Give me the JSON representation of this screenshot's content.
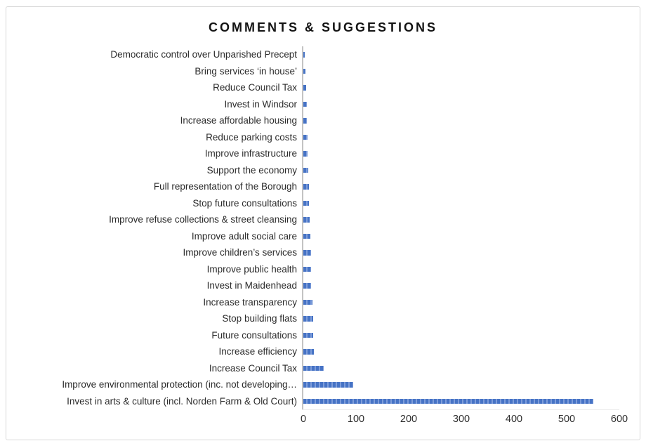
{
  "title": "COMMENTS & SUGGESTIONS",
  "chart_data": {
    "type": "bar",
    "orientation": "horizontal",
    "title": "COMMENTS & SUGGESTIONS",
    "categories": [
      "Democratic control over Unparished Precept",
      "Bring services ‘in house’",
      "Reduce Council Tax",
      "Invest in Windsor",
      "Increase affordable housing",
      "Reduce parking costs",
      "Improve infrastructure",
      "Support the economy",
      "Full representation of the Borough",
      "Stop future consultations",
      "Improve refuse collections & street cleansing",
      "Improve adult social care",
      "Improve children’s services",
      "Improve public health",
      "Invest in Maidenhead",
      "Increase transparency",
      "Stop building flats",
      "Future consultations",
      "Increase efficiency",
      "Increase Council Tax",
      "Improve environmental protection (inc. not developing…",
      "Invest in arts & culture (incl. Norden Farm & Old Court)"
    ],
    "values": [
      3,
      4,
      5,
      6,
      7,
      8,
      8,
      9,
      10,
      10,
      12,
      13,
      14,
      15,
      15,
      17,
      18,
      18,
      20,
      38,
      95,
      550
    ],
    "xlabel": "",
    "ylabel": "",
    "xlim": [
      0,
      600
    ],
    "x_ticks": [
      0,
      100,
      200,
      300,
      400,
      500,
      600
    ],
    "grid": false,
    "legend": false,
    "bar_color": "#4673C5",
    "bar_stripe_color": "#7E9DDA",
    "axis_line_color": "#C3C3C3",
    "frame_border_color": "#D8D8D8",
    "text_color": "#2B2B2B"
  }
}
